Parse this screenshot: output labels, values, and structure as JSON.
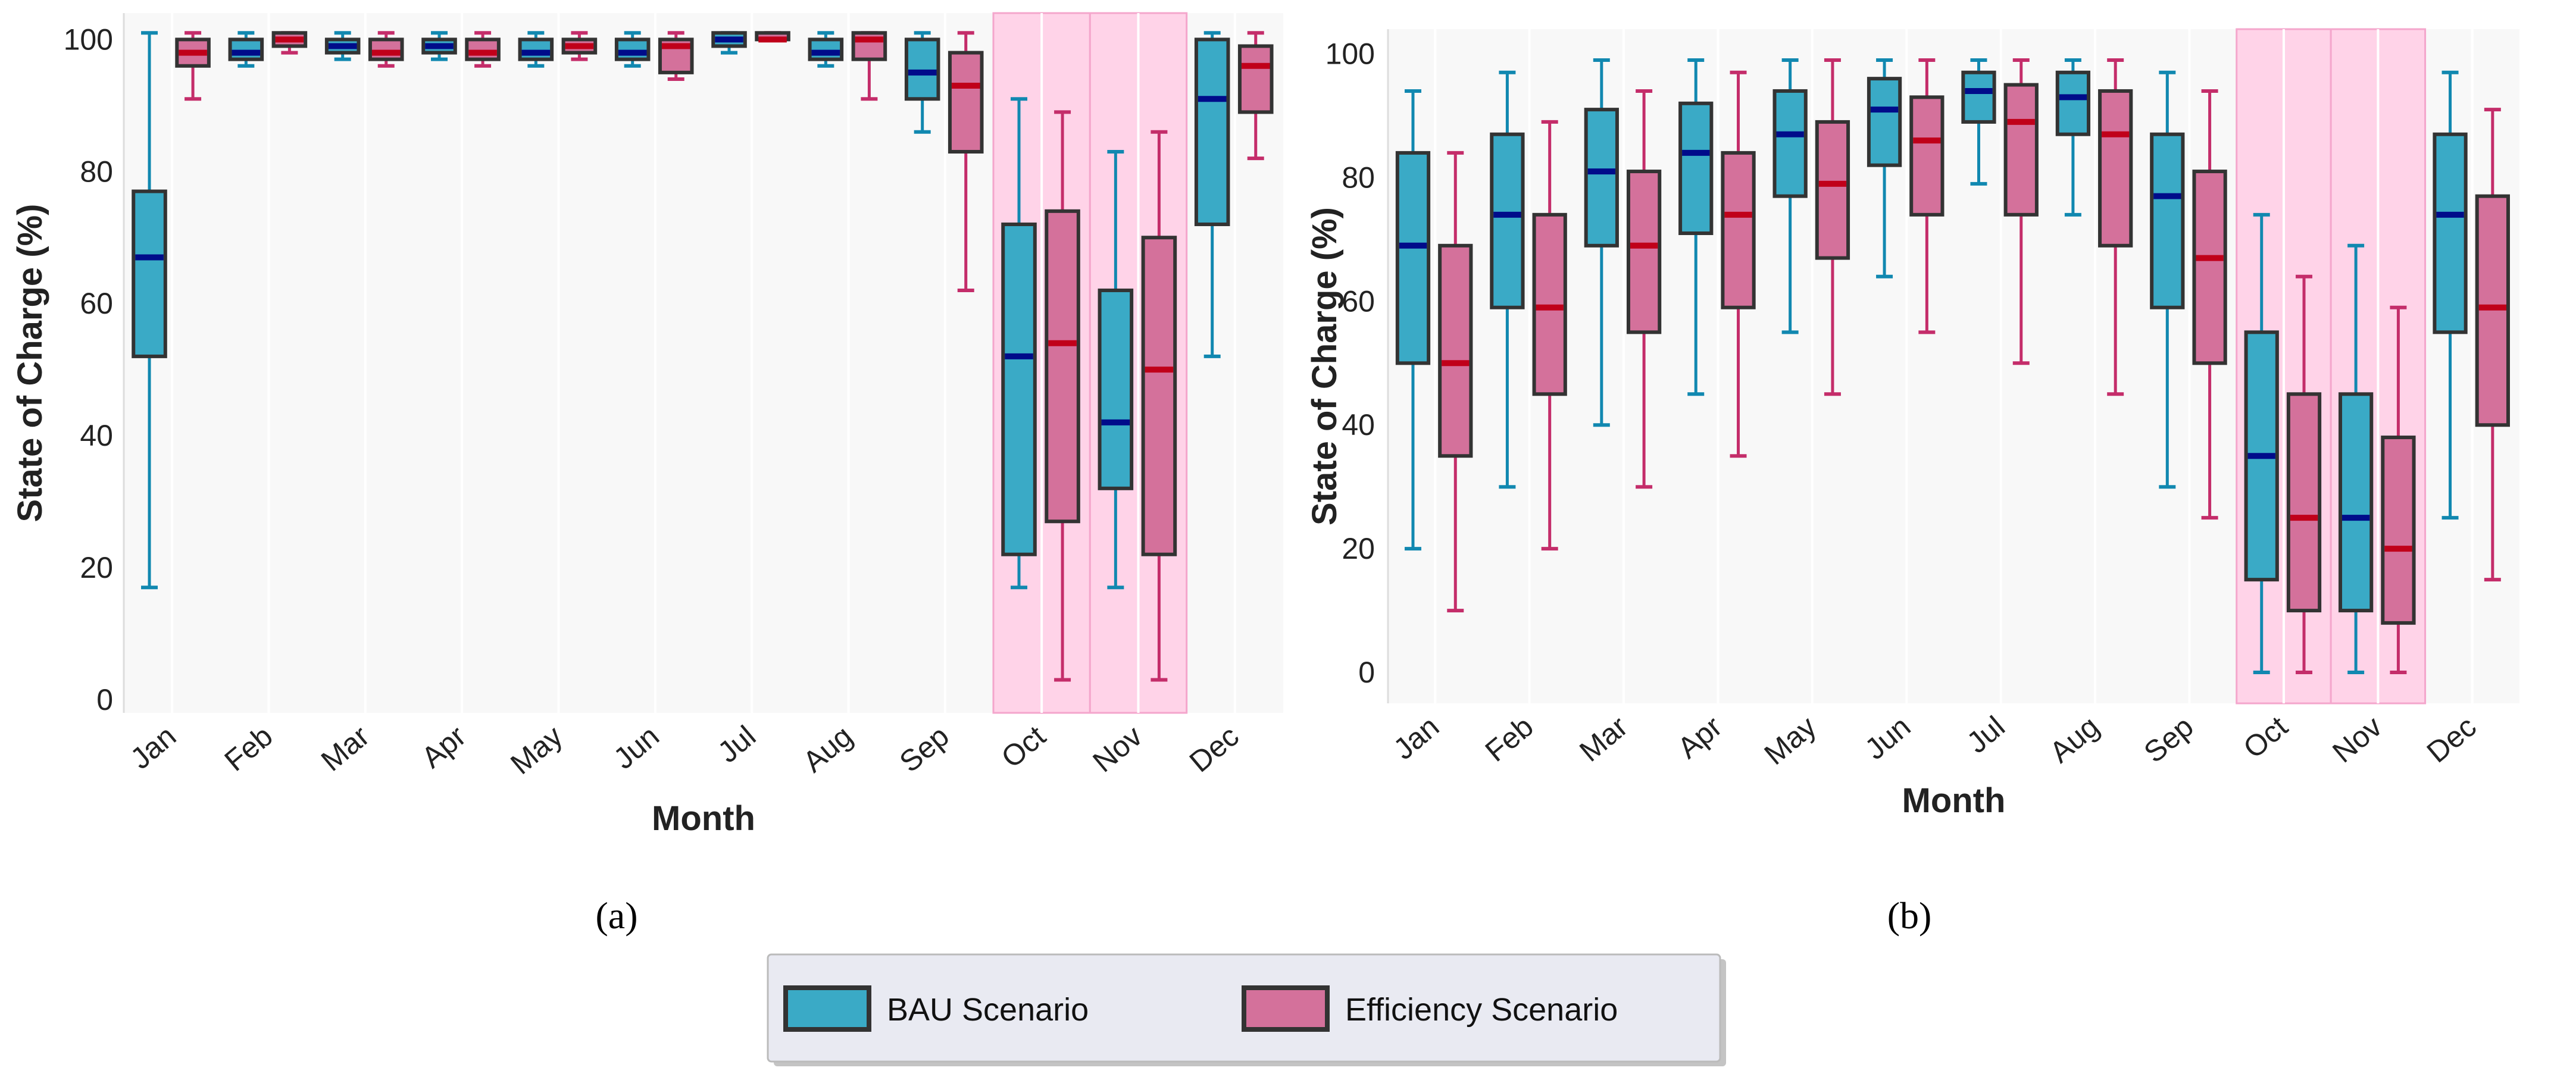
{
  "colors": {
    "bau_box": "#3aaac6",
    "bau_line": "#1188b0",
    "bau_median": "#000c8a",
    "eff_box": "#d4719b",
    "eff_line": "#c42d6a",
    "eff_median": "#c0001a",
    "highlight": "#ffd3e8",
    "plot_bg": "#f8f8f8"
  },
  "legend": {
    "items": [
      {
        "label": "BAU Scenario",
        "color": "#3aaac6"
      },
      {
        "label": "Efficiency Scenario",
        "color": "#d4719b"
      }
    ]
  },
  "chart_data": [
    {
      "type": "box",
      "panel_label": "(a)",
      "xlabel": "Month",
      "ylabel": "State of Charge (%)",
      "ylim": [
        -2,
        104
      ],
      "yticks": [
        0,
        20,
        40,
        60,
        80,
        100
      ],
      "grid": false,
      "highlight_categories": [
        "Oct",
        "Nov"
      ],
      "categories": [
        "Jan",
        "Feb",
        "Mar",
        "Apr",
        "May",
        "Jun",
        "Jul",
        "Aug",
        "Sep",
        "Oct",
        "Nov",
        "Dec"
      ],
      "series": [
        {
          "name": "BAU Scenario",
          "stats_order": [
            "min",
            "q1",
            "median",
            "q3",
            "max"
          ],
          "values": [
            [
              17,
              52,
              67,
              77,
              101
            ],
            [
              96,
              97,
              98,
              100,
              101
            ],
            [
              97,
              98,
              99,
              100,
              101
            ],
            [
              97,
              98,
              99,
              100,
              101
            ],
            [
              96,
              97,
              98,
              100,
              101
            ],
            [
              96,
              97,
              98,
              100,
              101
            ],
            [
              98,
              99,
              100,
              101,
              101
            ],
            [
              96,
              97,
              98,
              100,
              101
            ],
            [
              86,
              91,
              95,
              100,
              101
            ],
            [
              17,
              22,
              52,
              72,
              91
            ],
            [
              17,
              32,
              42,
              62,
              83
            ],
            [
              52,
              72,
              91,
              100,
              101
            ]
          ]
        },
        {
          "name": "Efficiency Scenario",
          "stats_order": [
            "min",
            "q1",
            "median",
            "q3",
            "max"
          ],
          "values": [
            [
              91,
              96,
              98,
              100,
              101
            ],
            [
              98,
              99,
              100,
              101,
              101
            ],
            [
              96,
              97,
              98,
              100,
              101
            ],
            [
              96,
              97,
              98,
              100,
              101
            ],
            [
              97,
              98,
              99,
              100,
              101
            ],
            [
              94,
              95,
              99,
              100,
              101
            ],
            [
              100,
              100,
              100,
              101,
              101
            ],
            [
              91,
              97,
              100,
              101,
              101
            ],
            [
              62,
              83,
              93,
              98,
              101
            ],
            [
              3,
              27,
              54,
              74,
              89
            ],
            [
              3,
              22,
              50,
              70,
              86
            ],
            [
              82,
              89,
              96,
              99,
              101
            ]
          ]
        }
      ]
    },
    {
      "type": "box",
      "panel_label": "(b)",
      "xlabel": "Month",
      "ylabel": "State of Charge (%)",
      "ylim": [
        -5,
        104
      ],
      "yticks": [
        0,
        20,
        40,
        60,
        80,
        100
      ],
      "grid": false,
      "highlight_categories": [
        "Oct",
        "Nov"
      ],
      "categories": [
        "Jan",
        "Feb",
        "Mar",
        "Apr",
        "May",
        "Jun",
        "Jul",
        "Aug",
        "Sep",
        "Oct",
        "Nov",
        "Dec"
      ],
      "series": [
        {
          "name": "BAU Scenario",
          "stats_order": [
            "min",
            "q1",
            "median",
            "q3",
            "max"
          ],
          "values": [
            [
              20,
              50,
              69,
              84,
              94
            ],
            [
              30,
              59,
              74,
              87,
              97
            ],
            [
              40,
              69,
              81,
              91,
              99
            ],
            [
              45,
              71,
              84,
              92,
              99
            ],
            [
              55,
              77,
              87,
              94,
              99
            ],
            [
              64,
              82,
              91,
              96,
              99
            ],
            [
              79,
              89,
              94,
              97,
              99
            ],
            [
              74,
              87,
              93,
              97,
              99
            ],
            [
              30,
              59,
              77,
              87,
              97
            ],
            [
              0,
              15,
              35,
              55,
              74
            ],
            [
              0,
              10,
              25,
              45,
              69
            ],
            [
              25,
              55,
              74,
              87,
              97
            ]
          ]
        },
        {
          "name": "Efficiency Scenario",
          "stats_order": [
            "min",
            "q1",
            "median",
            "q3",
            "max"
          ],
          "values": [
            [
              10,
              35,
              50,
              69,
              84
            ],
            [
              20,
              45,
              59,
              74,
              89
            ],
            [
              30,
              55,
              69,
              81,
              94
            ],
            [
              35,
              59,
              74,
              84,
              97
            ],
            [
              45,
              67,
              79,
              89,
              99
            ],
            [
              55,
              74,
              86,
              93,
              99
            ],
            [
              50,
              74,
              89,
              95,
              99
            ],
            [
              45,
              69,
              87,
              94,
              99
            ],
            [
              25,
              50,
              67,
              81,
              94
            ],
            [
              0,
              10,
              25,
              45,
              64
            ],
            [
              0,
              8,
              20,
              38,
              59
            ],
            [
              15,
              40,
              59,
              77,
              91
            ]
          ]
        }
      ]
    }
  ]
}
